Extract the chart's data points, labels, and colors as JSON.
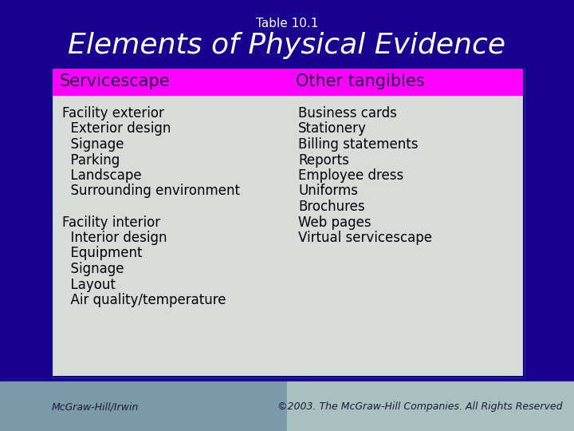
{
  "title_small": "Table 10.1",
  "title_large": "Elements of Physical Evidence",
  "header_bg": "#FF00FF",
  "header_col1": "Servicescape",
  "header_col2": "Other tangibles",
  "header_text_color": "#1a0040",
  "table_bg": "#d8dcd8",
  "top_bg": "#1a0090",
  "footer_bg_left": "#7a9aaa",
  "footer_bg_right": "#a8c0be",
  "col1_items": [
    [
      "Facility exterior",
      false
    ],
    [
      "  Exterior design",
      true
    ],
    [
      "  Signage",
      true
    ],
    [
      "  Parking",
      true
    ],
    [
      "  Landscape",
      true
    ],
    [
      "  Surrounding environment",
      true
    ],
    [
      "",
      false
    ],
    [
      "Facility interior",
      false
    ],
    [
      "  Interior design",
      true
    ],
    [
      "  Equipment",
      true
    ],
    [
      "  Signage",
      true
    ],
    [
      "  Layout",
      true
    ],
    [
      "  Air quality/temperature",
      true
    ]
  ],
  "col2_items": [
    "Business cards",
    "Stationery",
    "Billing statements",
    "Reports",
    "Employee dress",
    "Uniforms",
    "Brochures",
    "Web pages",
    "Virtual servicescape"
  ],
  "footer_left": "McGraw-Hill/Irwin",
  "footer_right": "©2003. The McGraw-Hill Companies. All Rights Reserved",
  "footer_text_color": "#1a1a3a",
  "table_border_color": "#000080",
  "text_color_table": "#000000",
  "title_small_color": "#ffffff",
  "title_large_color": "#ffffff"
}
